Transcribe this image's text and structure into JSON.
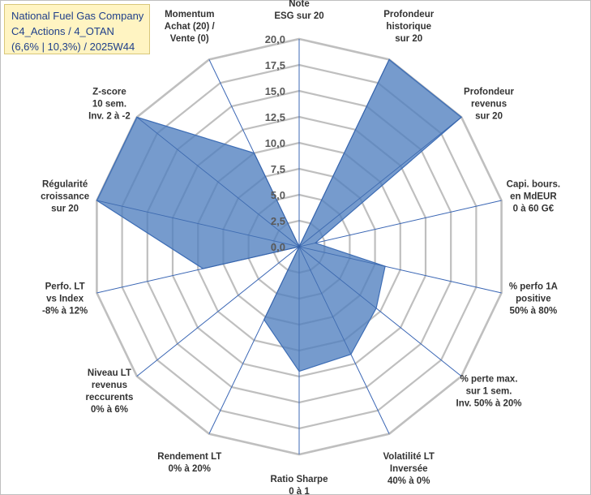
{
  "title": {
    "line1": "National Fuel Gas Company",
    "line2": "C4_Actions / 4_OTAN",
    "line3": "(6,6% | 10,3%) / 2025W44"
  },
  "chart_data": {
    "type": "radar",
    "rmin": 0,
    "rmax": 20,
    "ticks": [
      "0,0",
      "2,5",
      "5,0",
      "7,5",
      "10,0",
      "12,5",
      "15,0",
      "17,5",
      "20,0"
    ],
    "tick_values": [
      0,
      2.5,
      5,
      7.5,
      10,
      12.5,
      15,
      17.5,
      20
    ],
    "axes": [
      {
        "label": [
          "Note",
          "ESG sur 20"
        ],
        "value": 0
      },
      {
        "label": [
          "Profondeur",
          "historique",
          "sur 20"
        ],
        "value": 20
      },
      {
        "label": [
          "Profondeur",
          "revenus",
          "sur 20"
        ],
        "value": 20
      },
      {
        "label": [
          "Capi. bours.",
          "en MdEUR",
          "0 à 60 G€"
        ],
        "value": 1.6
      },
      {
        "label": [
          "% perfo 1A",
          "positive",
          "50% à 80%"
        ],
        "value": 8.5
      },
      {
        "label": [
          "% perte max.",
          "sur 1 sem.",
          "Inv. 50% à 20%"
        ],
        "value": 9.5
      },
      {
        "label": [
          "Volatilité LT",
          "Inversée",
          "40% à 0%"
        ],
        "value": 11.5
      },
      {
        "label": [
          "Ratio Sharpe",
          "0 à 1"
        ],
        "value": 12
      },
      {
        "label": [
          "Rendement LT",
          "0% à 20%"
        ],
        "value": 7.8
      },
      {
        "label": [
          "Niveau LT",
          "revenus",
          "reccurents",
          "0% à 6%"
        ],
        "value": 0
      },
      {
        "label": [
          "Perfo. LT",
          "vs Index",
          "-8% à 12%"
        ],
        "value": 9.5
      },
      {
        "label": [
          "Régularité",
          "croissance",
          "sur 20"
        ],
        "value": 20
      },
      {
        "label": [
          "Z-score",
          "10 sem.",
          "Inv. 2 à -2"
        ],
        "value": 20
      },
      {
        "label": [
          "Momentum",
          "Achat (20) /",
          "Vente (0)"
        ],
        "value": 10
      }
    ],
    "series_color": "#4f7fbf",
    "series_stroke": "#3d6db5",
    "grid_color": "#bfbfbf",
    "axis_color": "#4472c4"
  }
}
